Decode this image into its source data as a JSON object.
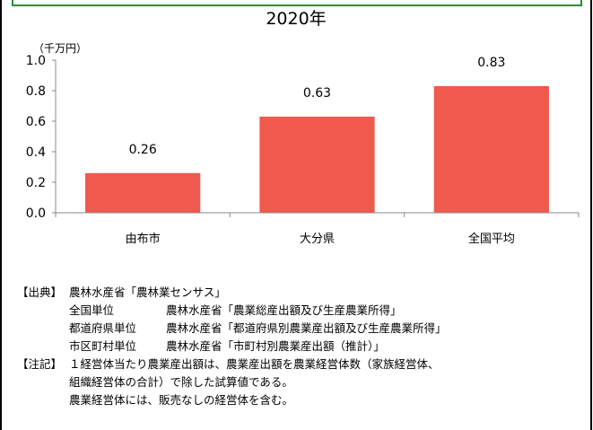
{
  "chart_data": {
    "type": "bar",
    "title": "2020年",
    "unit_label": "（千万円）",
    "categories": [
      "由布市",
      "大分県",
      "全国平均"
    ],
    "values": [
      0.26,
      0.63,
      0.83
    ],
    "data_labels": [
      "0.26",
      "0.63",
      "0.83"
    ],
    "ylim": [
      0,
      1.0
    ],
    "yticks": [
      "0.0",
      "0.2",
      "0.4",
      "0.6",
      "0.8",
      "1.0"
    ],
    "grid": false,
    "legend": "none"
  },
  "colors": {
    "bar": "#ef5a4c",
    "header_border": "#2e8b3a"
  },
  "notes": {
    "source_tag": "【出典】",
    "source_main": "農林水産省「農林業センサス」",
    "sources": [
      {
        "label": "全国単位",
        "text": "農林水産省「農業総産出額及び生産農業所得」"
      },
      {
        "label": "都道府県単位",
        "text": "農林水産省「都道府県別農業産出額及び生産農業所得」"
      },
      {
        "label": "市区町村単位",
        "text": "農林水産省「市町村別農業産出額（推計）」"
      }
    ],
    "remark_tag": "【注記】",
    "remarks": [
      "１経営体当たり農業産出額は、農業産出額を農業経営体数（家族経営体、",
      "組織経営体の合計）で除した試算値である。",
      "農業経営体には、販売なしの経営体を含む。"
    ]
  }
}
